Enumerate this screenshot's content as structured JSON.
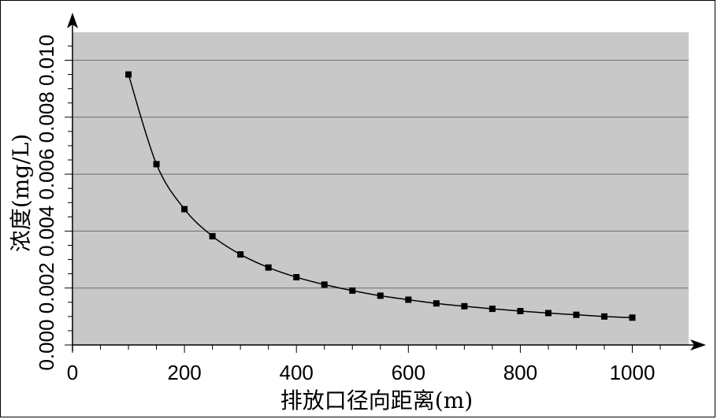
{
  "chart_data": {
    "type": "line",
    "title": "",
    "xlabel": "排放口径向距离(m)",
    "ylabel": "浓度(mg/L)",
    "xlim": [
      0,
      1100
    ],
    "ylim": [
      0,
      0.011
    ],
    "x_ticks": [
      "0",
      "200",
      "400",
      "600",
      "800",
      "1000"
    ],
    "y_ticks": [
      "0.000",
      "0.002",
      "0.004",
      "0.006",
      "0.008",
      "0.010"
    ],
    "grid": true,
    "plot_background": "#c8c8c8",
    "line_color": "#000000",
    "marker": "square",
    "series": [
      {
        "x": [
          100,
          150,
          200,
          250,
          300,
          350,
          400,
          450,
          500,
          550,
          600,
          650,
          700,
          750,
          800,
          850,
          900,
          950,
          1000
        ],
        "values": [
          0.0095,
          0.00635,
          0.00477,
          0.00382,
          0.00318,
          0.00272,
          0.00238,
          0.00212,
          0.00191,
          0.00173,
          0.00159,
          0.00146,
          0.00136,
          0.00127,
          0.00119,
          0.00112,
          0.00106,
          0.001,
          0.00096
        ]
      }
    ]
  }
}
